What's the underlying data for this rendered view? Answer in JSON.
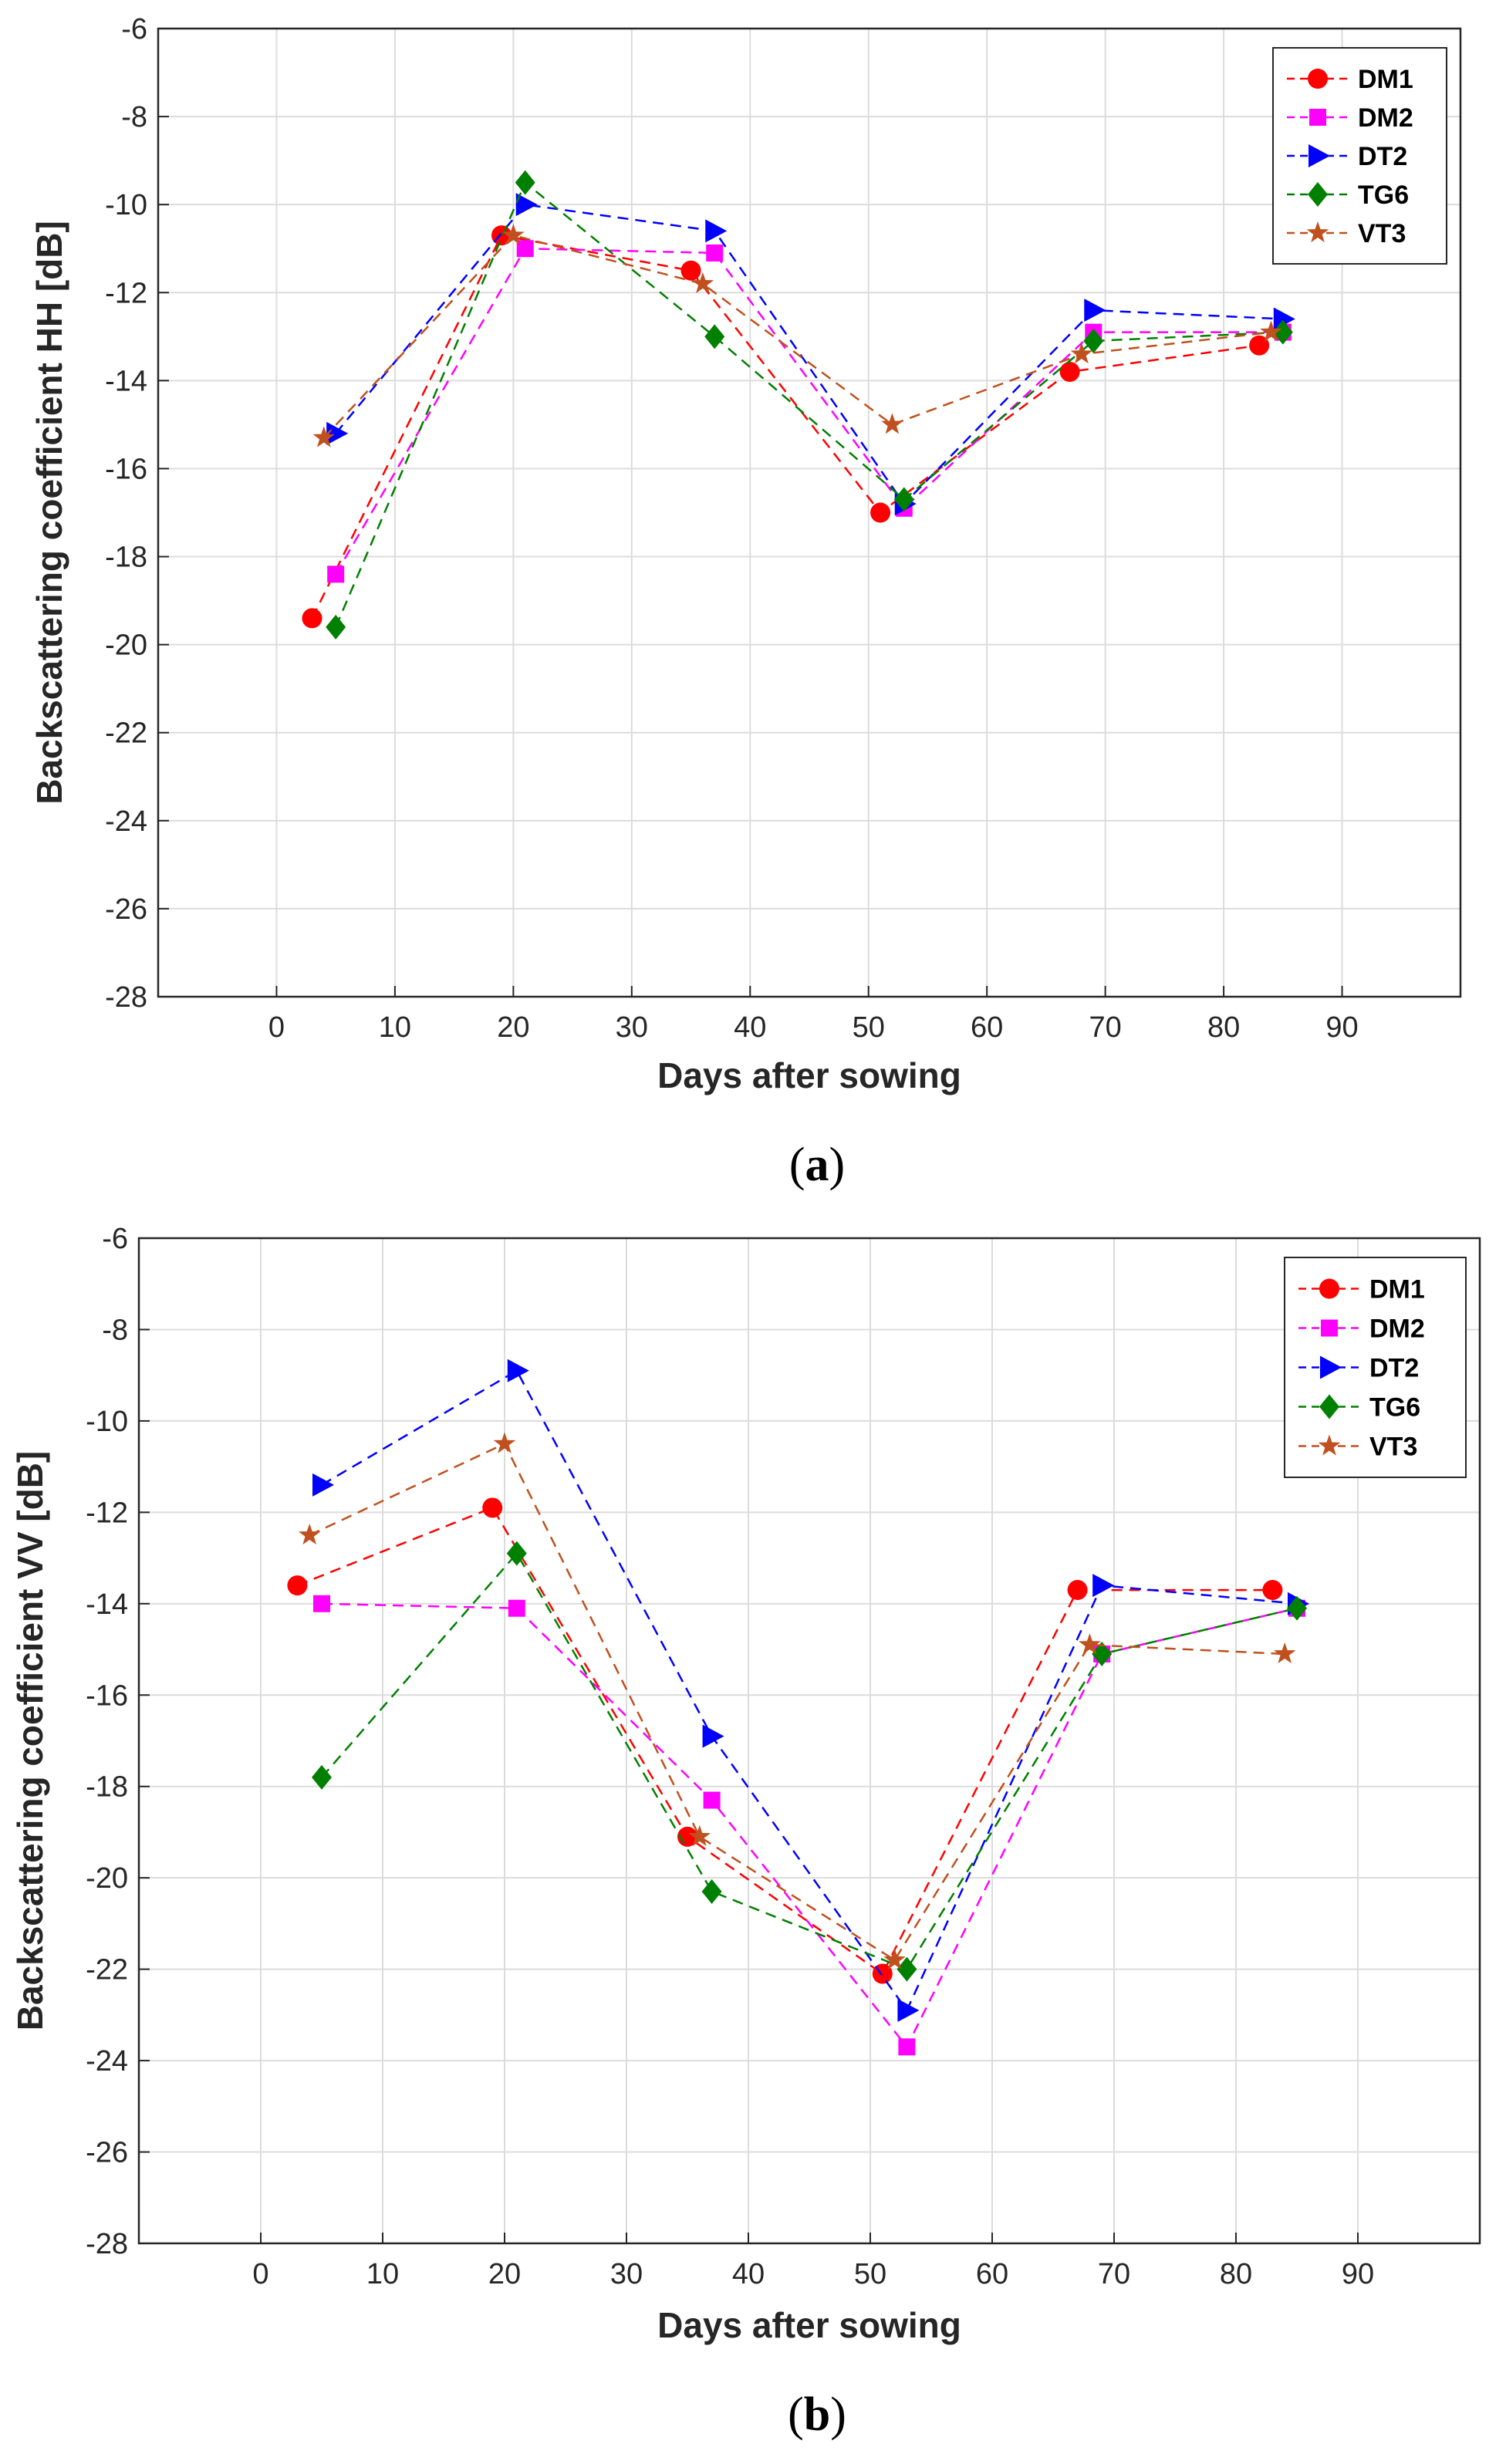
{
  "chart_data": [
    {
      "type": "line",
      "caption_letter": "a",
      "xlabel": "Days after sowing",
      "ylabel": "Backscattering coefficient HH [dB]",
      "xlim": [
        -10,
        100
      ],
      "ylim": [
        -28,
        -6
      ],
      "xticks": [
        0,
        10,
        20,
        30,
        40,
        50,
        60,
        70,
        80,
        90
      ],
      "yticks": [
        -6,
        -8,
        -10,
        -12,
        -14,
        -16,
        -18,
        -20,
        -22,
        -24,
        -26,
        -28
      ],
      "grid": true,
      "legend_position": "top-right",
      "series": [
        {
          "name": "DM1",
          "color": "#ff0000",
          "marker": "circle",
          "x": [
            3,
            19,
            35,
            51,
            67,
            83
          ],
          "y": [
            -19.4,
            -10.7,
            -11.5,
            -17.0,
            -13.8,
            -13.2
          ]
        },
        {
          "name": "DM2",
          "color": "#ff00ff",
          "marker": "square",
          "x": [
            5,
            21,
            37,
            53,
            69,
            85
          ],
          "y": [
            -18.4,
            -11.0,
            -11.1,
            -16.9,
            -12.9,
            -12.9
          ]
        },
        {
          "name": "DT2",
          "color": "#0000ff",
          "marker": "triangle-right",
          "x": [
            5,
            21,
            37,
            53,
            69,
            85
          ],
          "y": [
            -15.2,
            -10.0,
            -10.6,
            -16.8,
            -12.4,
            -12.6
          ]
        },
        {
          "name": "TG6",
          "color": "#008000",
          "marker": "diamond",
          "x": [
            5,
            21,
            37,
            53,
            69,
            85
          ],
          "y": [
            -19.6,
            -9.5,
            -13.0,
            -16.7,
            -13.1,
            -12.9
          ]
        },
        {
          "name": "VT3",
          "color": "#c0501e",
          "marker": "star",
          "x": [
            4,
            20,
            36,
            52,
            68,
            84
          ],
          "y": [
            -15.3,
            -10.7,
            -11.8,
            -15.0,
            -13.4,
            -12.9
          ]
        }
      ]
    },
    {
      "type": "line",
      "caption_letter": "b",
      "xlabel": "Days after sowing",
      "ylabel": "Backscattering coefficient VV [dB]",
      "xlim": [
        -10,
        100
      ],
      "ylim": [
        -28,
        -6
      ],
      "xticks": [
        0,
        10,
        20,
        30,
        40,
        50,
        60,
        70,
        80,
        90
      ],
      "yticks": [
        -6,
        -8,
        -10,
        -12,
        -14,
        -16,
        -18,
        -20,
        -22,
        -24,
        -26,
        -28
      ],
      "grid": true,
      "legend_position": "top-right",
      "series": [
        {
          "name": "DM1",
          "color": "#ff0000",
          "marker": "circle",
          "x": [
            3,
            19,
            35,
            51,
            67,
            83
          ],
          "y": [
            -13.6,
            -11.9,
            -19.1,
            -22.1,
            -13.7,
            -13.7
          ]
        },
        {
          "name": "DM2",
          "color": "#ff00ff",
          "marker": "square",
          "x": [
            5,
            21,
            37,
            53,
            69,
            85
          ],
          "y": [
            -14.0,
            -14.1,
            -18.3,
            -23.7,
            -15.1,
            -14.1
          ]
        },
        {
          "name": "DT2",
          "color": "#0000ff",
          "marker": "triangle-right",
          "x": [
            5,
            21,
            37,
            53,
            69,
            85
          ],
          "y": [
            -11.4,
            -8.9,
            -16.9,
            -22.9,
            -13.6,
            -14.0
          ]
        },
        {
          "name": "TG6",
          "color": "#008000",
          "marker": "diamond",
          "x": [
            5,
            21,
            37,
            53,
            69,
            85
          ],
          "y": [
            -17.8,
            -12.9,
            -20.3,
            -22.0,
            -15.1,
            -14.1
          ]
        },
        {
          "name": "VT3",
          "color": "#c0501e",
          "marker": "star",
          "x": [
            4,
            20,
            36,
            52,
            68,
            84
          ],
          "y": [
            -12.5,
            -10.5,
            -19.1,
            -21.8,
            -14.9,
            -15.1
          ]
        }
      ]
    }
  ]
}
